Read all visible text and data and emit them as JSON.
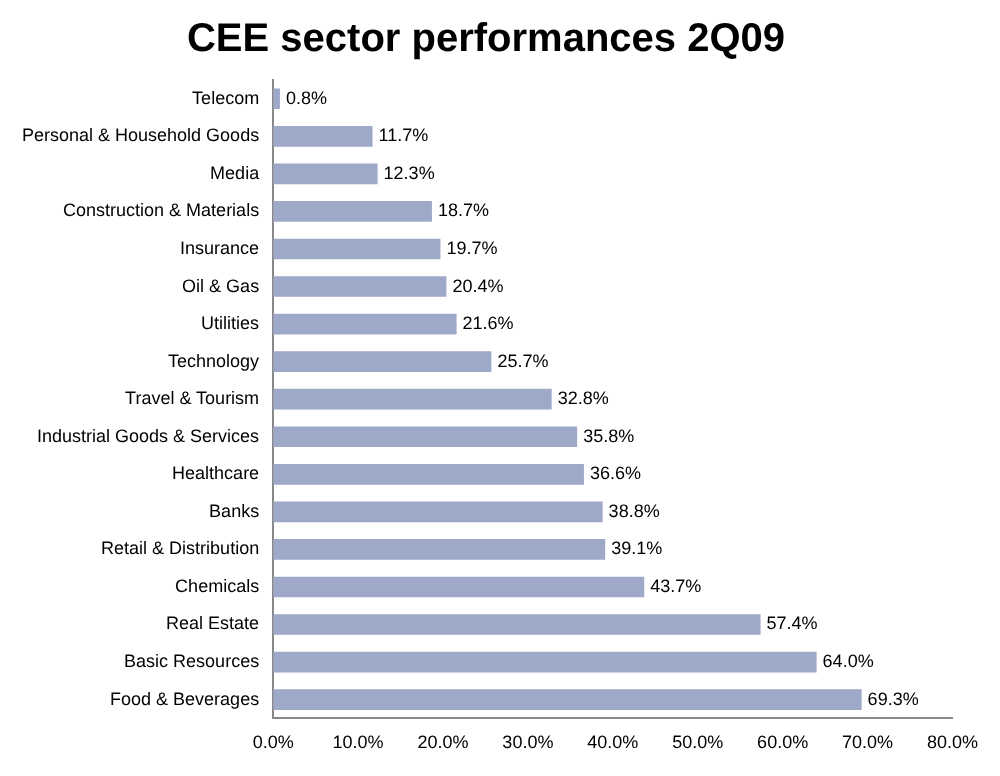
{
  "chart_data": {
    "type": "bar",
    "orientation": "horizontal",
    "title": "CEE sector performances 2Q09",
    "categories": [
      "Telecom",
      "Personal & Household Goods",
      "Media",
      "Construction & Materials",
      "Insurance",
      "Oil & Gas",
      "Utilities",
      "Technology",
      "Travel & Tourism",
      "Industrial Goods & Services",
      "Healthcare",
      "Banks",
      "Retail & Distribution",
      "Chemicals",
      "Real Estate",
      "Basic Resources",
      "Food & Beverages"
    ],
    "values": [
      0.8,
      11.7,
      12.3,
      18.7,
      19.7,
      20.4,
      21.6,
      25.7,
      32.8,
      35.8,
      36.6,
      38.8,
      39.1,
      43.7,
      57.4,
      64.0,
      69.3
    ],
    "value_labels": [
      "0.8%",
      "11.7%",
      "12.3%",
      "18.7%",
      "19.7%",
      "20.4%",
      "21.6%",
      "25.7%",
      "32.8%",
      "35.8%",
      "36.6%",
      "38.8%",
      "39.1%",
      "43.7%",
      "57.4%",
      "64.0%",
      "69.3%"
    ],
    "color": "#9ea8c8",
    "xlim": [
      0,
      80
    ],
    "xticks": [
      {
        "value": 0,
        "label": "0.0%"
      },
      {
        "value": 10,
        "label": "10.0%"
      },
      {
        "value": 20,
        "label": "20.0%"
      },
      {
        "value": 30,
        "label": "30.0%"
      },
      {
        "value": 40,
        "label": "40.0%"
      },
      {
        "value": 50,
        "label": "50.0%"
      },
      {
        "value": 60,
        "label": "60.0%"
      },
      {
        "value": 70,
        "label": "70.0%"
      },
      {
        "value": 80,
        "label": "80.0%"
      }
    ],
    "grid": false,
    "legend": false
  }
}
